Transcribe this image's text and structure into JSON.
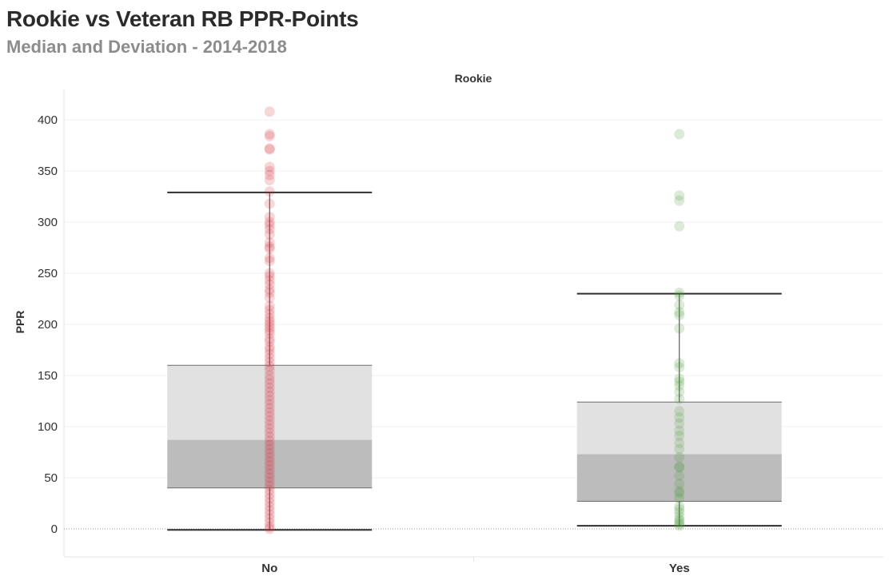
{
  "header": {
    "title": "Rookie vs Veteran RB PPR-Points",
    "subtitle": "Median and Deviation - 2014-2018"
  },
  "chart_data": {
    "type": "boxplot",
    "title": "Rookie vs Veteran RB PPR-Points",
    "subtitle": "Median and Deviation - 2014-2018",
    "column_header": "Rookie",
    "ylabel": "PPR",
    "xlabel": "",
    "ylim": [
      -27,
      430
    ],
    "yticks": [
      0,
      50,
      100,
      150,
      200,
      250,
      300,
      350,
      400
    ],
    "grid": true,
    "categories": [
      "No",
      "Yes"
    ],
    "boxes": [
      {
        "category": "No",
        "whisker_low": -1,
        "q1": 40,
        "median": 87,
        "q3": 160,
        "whisker_high": 329,
        "color": "#d9343c"
      },
      {
        "category": "Yes",
        "whisker_low": 3,
        "q1": 27,
        "median": 73,
        "q3": 124,
        "whisker_high": 230,
        "color": "#4a9a3c"
      }
    ],
    "points": {
      "No": [
        408,
        386,
        384,
        372,
        371,
        354,
        350,
        346,
        341,
        330,
        318,
        305,
        300,
        297,
        293,
        288,
        280,
        276,
        274,
        265,
        262,
        250,
        247,
        243,
        239,
        234,
        231,
        226,
        218,
        214,
        210,
        206,
        203,
        200,
        197,
        194,
        191,
        186,
        183,
        178,
        175,
        171,
        167,
        163,
        159,
        155,
        150,
        146,
        142,
        138,
        134,
        130,
        126,
        122,
        118,
        114,
        110,
        106,
        102,
        98,
        94,
        90,
        86,
        82,
        78,
        74,
        70,
        66,
        62,
        58,
        54,
        50,
        46,
        42,
        38,
        34,
        30,
        26,
        22,
        18,
        14,
        10,
        6,
        2,
        0
      ],
      "Yes": [
        386,
        326,
        321,
        296,
        231,
        228,
        219,
        212,
        209,
        196,
        162,
        158,
        147,
        144,
        140,
        134,
        127,
        115,
        109,
        103,
        96,
        91,
        84,
        78,
        70,
        61,
        60,
        52,
        44,
        37,
        35,
        30,
        22,
        19,
        16,
        12,
        9,
        7,
        5,
        3
      ]
    }
  }
}
